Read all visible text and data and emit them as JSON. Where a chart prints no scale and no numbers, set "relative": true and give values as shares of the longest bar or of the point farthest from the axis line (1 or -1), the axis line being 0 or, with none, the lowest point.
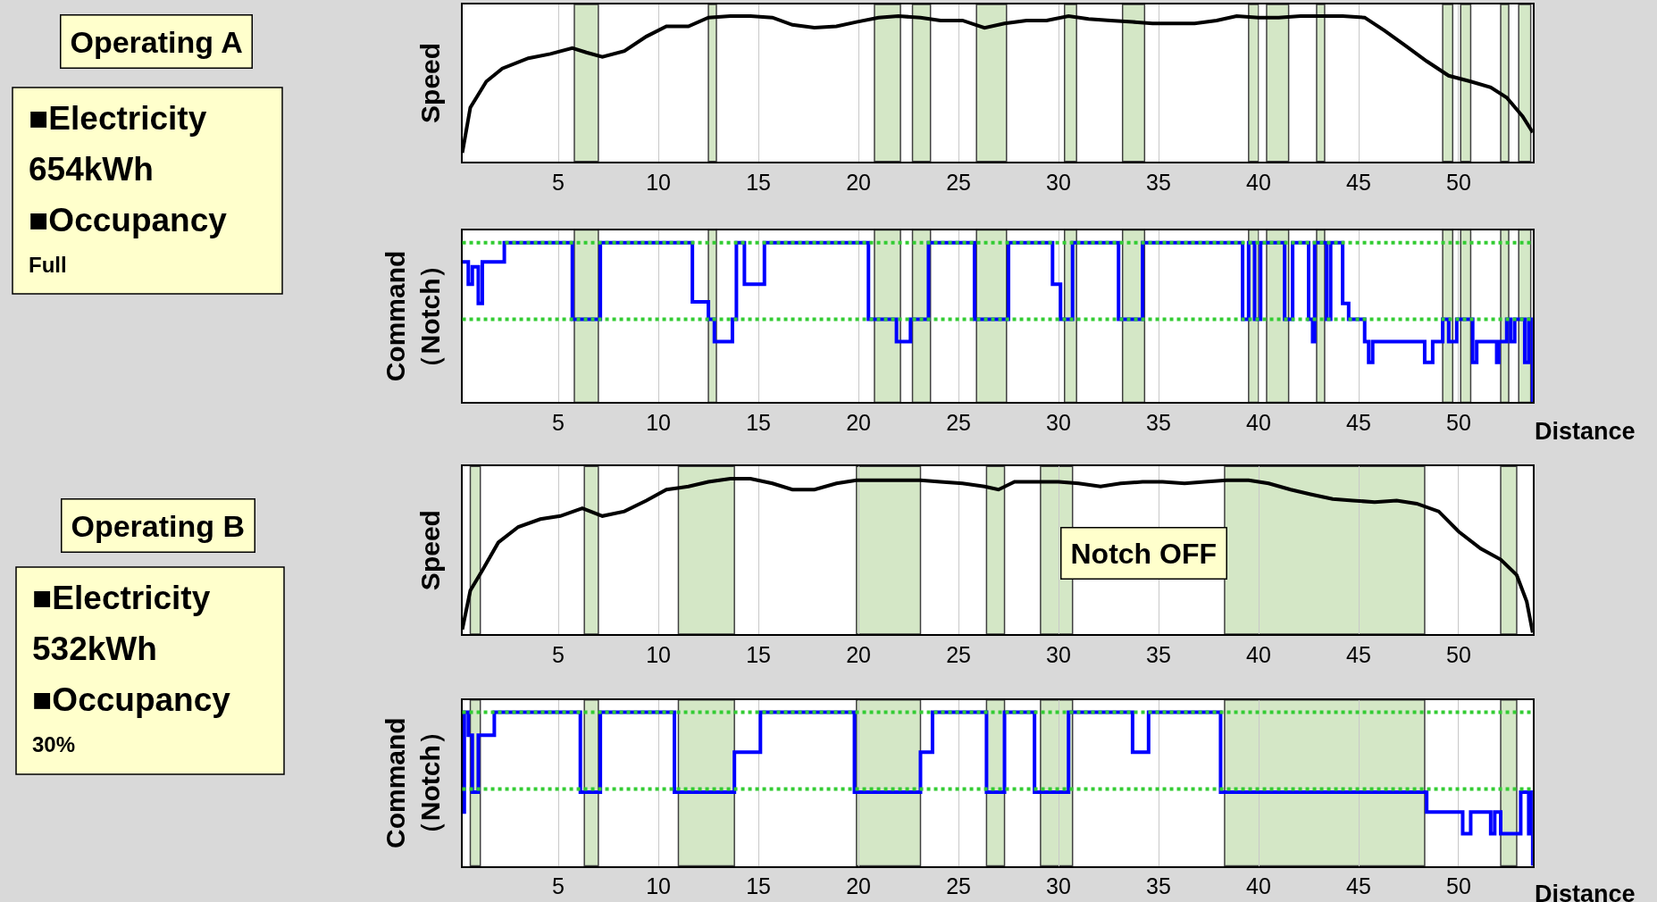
{
  "chart_data": [
    {
      "type": "other",
      "title": "Operating A",
      "annotations": [
        "■Electricity",
        "654kWh",
        "■Occupancy",
        "Full"
      ]
    },
    {
      "type": "line",
      "relative": true,
      "ylabel": "Speed",
      "xlim": [
        0.2,
        53.7
      ],
      "xticks": [
        5,
        10,
        15,
        20,
        25,
        30,
        35,
        40,
        45,
        50
      ],
      "grid": "x",
      "tick_labels": "x",
      "line_style": "solid",
      "series": [
        {
          "color": "#000000",
          "x": [
            0.2,
            0.6,
            1.4,
            2.2,
            3.5,
            4.6,
            5.7,
            6.4,
            7.2,
            8.3,
            9.4,
            10.4,
            11.5,
            12.5,
            13.6,
            14.6,
            15.7,
            16.7,
            17.8,
            18.9,
            19.9,
            21.0,
            22.0,
            23.1,
            24.1,
            25.2,
            26.3,
            27.3,
            28.4,
            29.4,
            30.5,
            31.5,
            32.6,
            33.7,
            34.7,
            35.8,
            36.8,
            37.9,
            38.9,
            40.0,
            41.0,
            42.1,
            43.2,
            44.2,
            45.3,
            46.3,
            47.4,
            48.4,
            49.5,
            50.6,
            51.6,
            52.4,
            53.2,
            53.7
          ],
          "values": [
            0.06,
            0.37,
            0.55,
            0.64,
            0.71,
            0.74,
            0.78,
            0.75,
            0.72,
            0.76,
            0.86,
            0.93,
            0.93,
            0.99,
            1.0,
            1.0,
            0.99,
            0.94,
            0.92,
            0.93,
            0.96,
            0.99,
            1.0,
            0.99,
            0.97,
            0.97,
            0.92,
            0.95,
            0.97,
            0.97,
            1.0,
            0.98,
            0.97,
            0.96,
            0.95,
            0.95,
            0.95,
            0.97,
            1.0,
            0.99,
            0.99,
            1.0,
            1.0,
            1.0,
            0.99,
            0.9,
            0.79,
            0.69,
            0.59,
            0.55,
            0.51,
            0.44,
            0.31,
            0.2
          ]
        }
      ],
      "bands": [
        {
          "axis": "x",
          "from": 5.8,
          "to": 7.0,
          "color": "#c6e0b4"
        },
        {
          "axis": "x",
          "from": 12.5,
          "to": 12.9,
          "color": "#c6e0b4"
        },
        {
          "axis": "x",
          "from": 20.8,
          "to": 22.1,
          "color": "#c6e0b4"
        },
        {
          "axis": "x",
          "from": 22.7,
          "to": 23.6,
          "color": "#c6e0b4"
        },
        {
          "axis": "x",
          "from": 25.9,
          "to": 27.4,
          "color": "#c6e0b4"
        },
        {
          "axis": "x",
          "from": 30.3,
          "to": 30.9,
          "color": "#c6e0b4"
        },
        {
          "axis": "x",
          "from": 33.2,
          "to": 34.3,
          "color": "#c6e0b4"
        },
        {
          "axis": "x",
          "from": 39.5,
          "to": 40.0,
          "color": "#c6e0b4"
        },
        {
          "axis": "x",
          "from": 40.4,
          "to": 41.5,
          "color": "#c6e0b4"
        },
        {
          "axis": "x",
          "from": 42.9,
          "to": 43.3,
          "color": "#c6e0b4"
        },
        {
          "axis": "x",
          "from": 49.2,
          "to": 49.7,
          "color": "#c6e0b4"
        },
        {
          "axis": "x",
          "from": 50.1,
          "to": 50.6,
          "color": "#c6e0b4"
        },
        {
          "axis": "x",
          "from": 52.1,
          "to": 52.5,
          "color": "#c6e0b4"
        },
        {
          "axis": "x",
          "from": 53.0,
          "to": 53.6,
          "color": "#c6e0b4"
        }
      ]
    },
    {
      "type": "step",
      "relative": true,
      "ylabel": "Command\n（Notch）",
      "xlabel": "Distance",
      "xlim": [
        0.2,
        53.7
      ],
      "xticks": [
        5,
        10,
        15,
        20,
        25,
        30,
        35,
        40,
        45,
        50
      ],
      "grid": "x",
      "tick_labels": "x",
      "line_style": "solid",
      "series": [
        {
          "color": "#0000ff",
          "x": [
            0.2,
            0.5,
            0.7,
            1.0,
            1.2,
            2.3,
            5.7,
            7.1,
            11.7,
            12.5,
            12.8,
            13.7,
            13.9,
            14.3,
            15.3,
            20.5,
            21.9,
            22.6,
            23.5,
            25.8,
            27.5,
            29.7,
            30.1,
            30.7,
            33.0,
            34.2,
            39.2,
            39.5,
            39.8,
            40.1,
            41.3,
            41.7,
            42.5,
            42.7,
            42.8,
            43.4,
            43.6,
            44.2,
            44.5,
            45.3,
            45.5,
            45.7,
            48.3,
            48.7,
            49.2,
            49.5,
            49.9,
            50.7,
            50.9,
            51.9,
            52.0,
            52.4,
            52.6,
            52.8,
            53.3,
            53.5,
            53.7
          ],
          "values": [
            0.88,
            0.74,
            0.85,
            0.62,
            0.88,
            1,
            0.52,
            1,
            0.63,
            0.52,
            0.38,
            0.52,
            1,
            0.74,
            1,
            0.52,
            0.38,
            0.52,
            1,
            0.52,
            1,
            0.74,
            0.52,
            1,
            0.52,
            1,
            0.52,
            1,
            0.52,
            1,
            0.52,
            1,
            0.52,
            0.38,
            1,
            0.52,
            1,
            0.62,
            0.52,
            0.38,
            0.25,
            0.38,
            0.25,
            0.38,
            0.52,
            0.38,
            0.52,
            0.25,
            0.38,
            0.25,
            0.38,
            0.52,
            0.38,
            0.52,
            0.25,
            0.52,
            0
          ]
        }
      ],
      "ref_lines": [
        {
          "axis": "y",
          "value": 1,
          "color": "#33cc33",
          "line_style": "dotted"
        },
        {
          "axis": "y",
          "value": 0.52,
          "color": "#33cc33",
          "line_style": "dotted"
        }
      ],
      "bands": [
        {
          "axis": "x",
          "from": 5.8,
          "to": 7.0,
          "color": "#c6e0b4"
        },
        {
          "axis": "x",
          "from": 12.5,
          "to": 12.9,
          "color": "#c6e0b4"
        },
        {
          "axis": "x",
          "from": 20.8,
          "to": 22.1,
          "color": "#c6e0b4"
        },
        {
          "axis": "x",
          "from": 22.7,
          "to": 23.6,
          "color": "#c6e0b4"
        },
        {
          "axis": "x",
          "from": 25.9,
          "to": 27.4,
          "color": "#c6e0b4"
        },
        {
          "axis": "x",
          "from": 30.3,
          "to": 30.9,
          "color": "#c6e0b4"
        },
        {
          "axis": "x",
          "from": 33.2,
          "to": 34.3,
          "color": "#c6e0b4"
        },
        {
          "axis": "x",
          "from": 39.5,
          "to": 40.0,
          "color": "#c6e0b4"
        },
        {
          "axis": "x",
          "from": 40.4,
          "to": 41.5,
          "color": "#c6e0b4"
        },
        {
          "axis": "x",
          "from": 42.9,
          "to": 43.3,
          "color": "#c6e0b4"
        },
        {
          "axis": "x",
          "from": 49.2,
          "to": 49.7,
          "color": "#c6e0b4"
        },
        {
          "axis": "x",
          "from": 50.1,
          "to": 50.6,
          "color": "#c6e0b4"
        },
        {
          "axis": "x",
          "from": 52.1,
          "to": 52.5,
          "color": "#c6e0b4"
        },
        {
          "axis": "x",
          "from": 53.0,
          "to": 53.6,
          "color": "#c6e0b4"
        }
      ]
    },
    {
      "type": "other",
      "title": "Operating B",
      "annotations": [
        "■Electricity",
        "532kWh",
        "■Occupancy",
        "30%"
      ]
    },
    {
      "type": "line",
      "relative": true,
      "ylabel": "Speed",
      "xlim": [
        0.2,
        53.7
      ],
      "xticks": [
        5,
        10,
        15,
        20,
        25,
        30,
        35,
        40,
        45,
        50
      ],
      "grid": "x",
      "tick_labels": "x",
      "line_style": "solid",
      "annotations": [
        "Notch OFF"
      ],
      "series": [
        {
          "color": "#000000",
          "x": [
            0.2,
            0.6,
            1.2,
            2.0,
            3.0,
            4.1,
            5.1,
            6.2,
            7.2,
            8.3,
            9.4,
            10.4,
            11.5,
            12.5,
            13.6,
            14.6,
            15.7,
            16.7,
            17.8,
            18.9,
            19.9,
            21.0,
            22.0,
            23.1,
            24.1,
            25.2,
            26.3,
            27.0,
            27.8,
            28.9,
            30.0,
            31.0,
            32.1,
            33.1,
            34.2,
            35.2,
            36.3,
            37.3,
            38.4,
            39.5,
            40.5,
            41.6,
            42.6,
            43.7,
            44.7,
            45.8,
            46.9,
            47.9,
            49.0,
            50.0,
            51.1,
            52.1,
            52.9,
            53.4,
            53.7
          ],
          "values": [
            0.03,
            0.28,
            0.41,
            0.59,
            0.69,
            0.74,
            0.76,
            0.81,
            0.76,
            0.79,
            0.86,
            0.93,
            0.95,
            0.98,
            1.0,
            1.0,
            0.97,
            0.93,
            0.93,
            0.97,
            0.99,
            0.99,
            0.99,
            0.99,
            0.98,
            0.97,
            0.95,
            0.93,
            0.98,
            0.98,
            0.98,
            0.97,
            0.95,
            0.97,
            0.98,
            0.98,
            0.97,
            0.98,
            0.99,
            0.99,
            0.97,
            0.93,
            0.9,
            0.87,
            0.86,
            0.85,
            0.86,
            0.84,
            0.79,
            0.66,
            0.55,
            0.48,
            0.38,
            0.21,
            0.01
          ]
        }
      ],
      "bands": [
        {
          "axis": "x",
          "from": 0.6,
          "to": 1.1,
          "color": "#c6e0b4"
        },
        {
          "axis": "x",
          "from": 6.3,
          "to": 7.0,
          "color": "#c6e0b4"
        },
        {
          "axis": "x",
          "from": 11.0,
          "to": 13.8,
          "color": "#c6e0b4"
        },
        {
          "axis": "x",
          "from": 19.9,
          "to": 23.1,
          "color": "#c6e0b4"
        },
        {
          "axis": "x",
          "from": 26.4,
          "to": 27.3,
          "color": "#c6e0b4"
        },
        {
          "axis": "x",
          "from": 29.1,
          "to": 30.7,
          "color": "#c6e0b4"
        },
        {
          "axis": "x",
          "from": 38.3,
          "to": 48.3,
          "color": "#c6e0b4"
        },
        {
          "axis": "x",
          "from": 52.1,
          "to": 52.9,
          "color": "#c6e0b4"
        }
      ]
    },
    {
      "type": "step",
      "relative": true,
      "ylabel": "Command\n（Notch）",
      "xlabel": "Distance",
      "xlim": [
        0.2,
        53.7
      ],
      "xticks": [
        5,
        10,
        15,
        20,
        25,
        30,
        35,
        40,
        45,
        50
      ],
      "grid": "x",
      "tick_labels": "x",
      "line_style": "solid",
      "series": [
        {
          "color": "#0000ff",
          "x": [
            0.2,
            0.3,
            0.5,
            0.7,
            1.0,
            1.8,
            6.1,
            7.1,
            10.8,
            13.8,
            15.1,
            19.8,
            23.1,
            23.7,
            26.4,
            27.3,
            28.8,
            30.5,
            33.7,
            34.5,
            38.1,
            48.4,
            50.2,
            50.6,
            51.6,
            51.8,
            52.1,
            53.1,
            53.5,
            53.6,
            53.7
          ],
          "values": [
            0.35,
            1,
            0.85,
            0.48,
            0.85,
            1,
            0.48,
            1,
            0.48,
            0.74,
            1,
            0.48,
            0.74,
            1,
            0.48,
            1,
            0.48,
            1,
            0.74,
            1,
            0.48,
            0.35,
            0.21,
            0.35,
            0.21,
            0.35,
            0.21,
            0.48,
            0.21,
            0.48,
            0
          ]
        }
      ],
      "ref_lines": [
        {
          "axis": "y",
          "value": 1,
          "color": "#33cc33",
          "line_style": "dotted"
        },
        {
          "axis": "y",
          "value": 0.5,
          "color": "#33cc33",
          "line_style": "dotted"
        }
      ],
      "bands": [
        {
          "axis": "x",
          "from": 0.6,
          "to": 1.1,
          "color": "#c6e0b4"
        },
        {
          "axis": "x",
          "from": 6.3,
          "to": 7.0,
          "color": "#c6e0b4"
        },
        {
          "axis": "x",
          "from": 11.0,
          "to": 13.8,
          "color": "#c6e0b4"
        },
        {
          "axis": "x",
          "from": 19.9,
          "to": 23.1,
          "color": "#c6e0b4"
        },
        {
          "axis": "x",
          "from": 26.4,
          "to": 27.3,
          "color": "#c6e0b4"
        },
        {
          "axis": "x",
          "from": 29.1,
          "to": 30.7,
          "color": "#c6e0b4"
        },
        {
          "axis": "x",
          "from": 38.3,
          "to": 48.3,
          "color": "#c6e0b4"
        },
        {
          "axis": "x",
          "from": 52.1,
          "to": 52.9,
          "color": "#c6e0b4"
        }
      ]
    }
  ]
}
